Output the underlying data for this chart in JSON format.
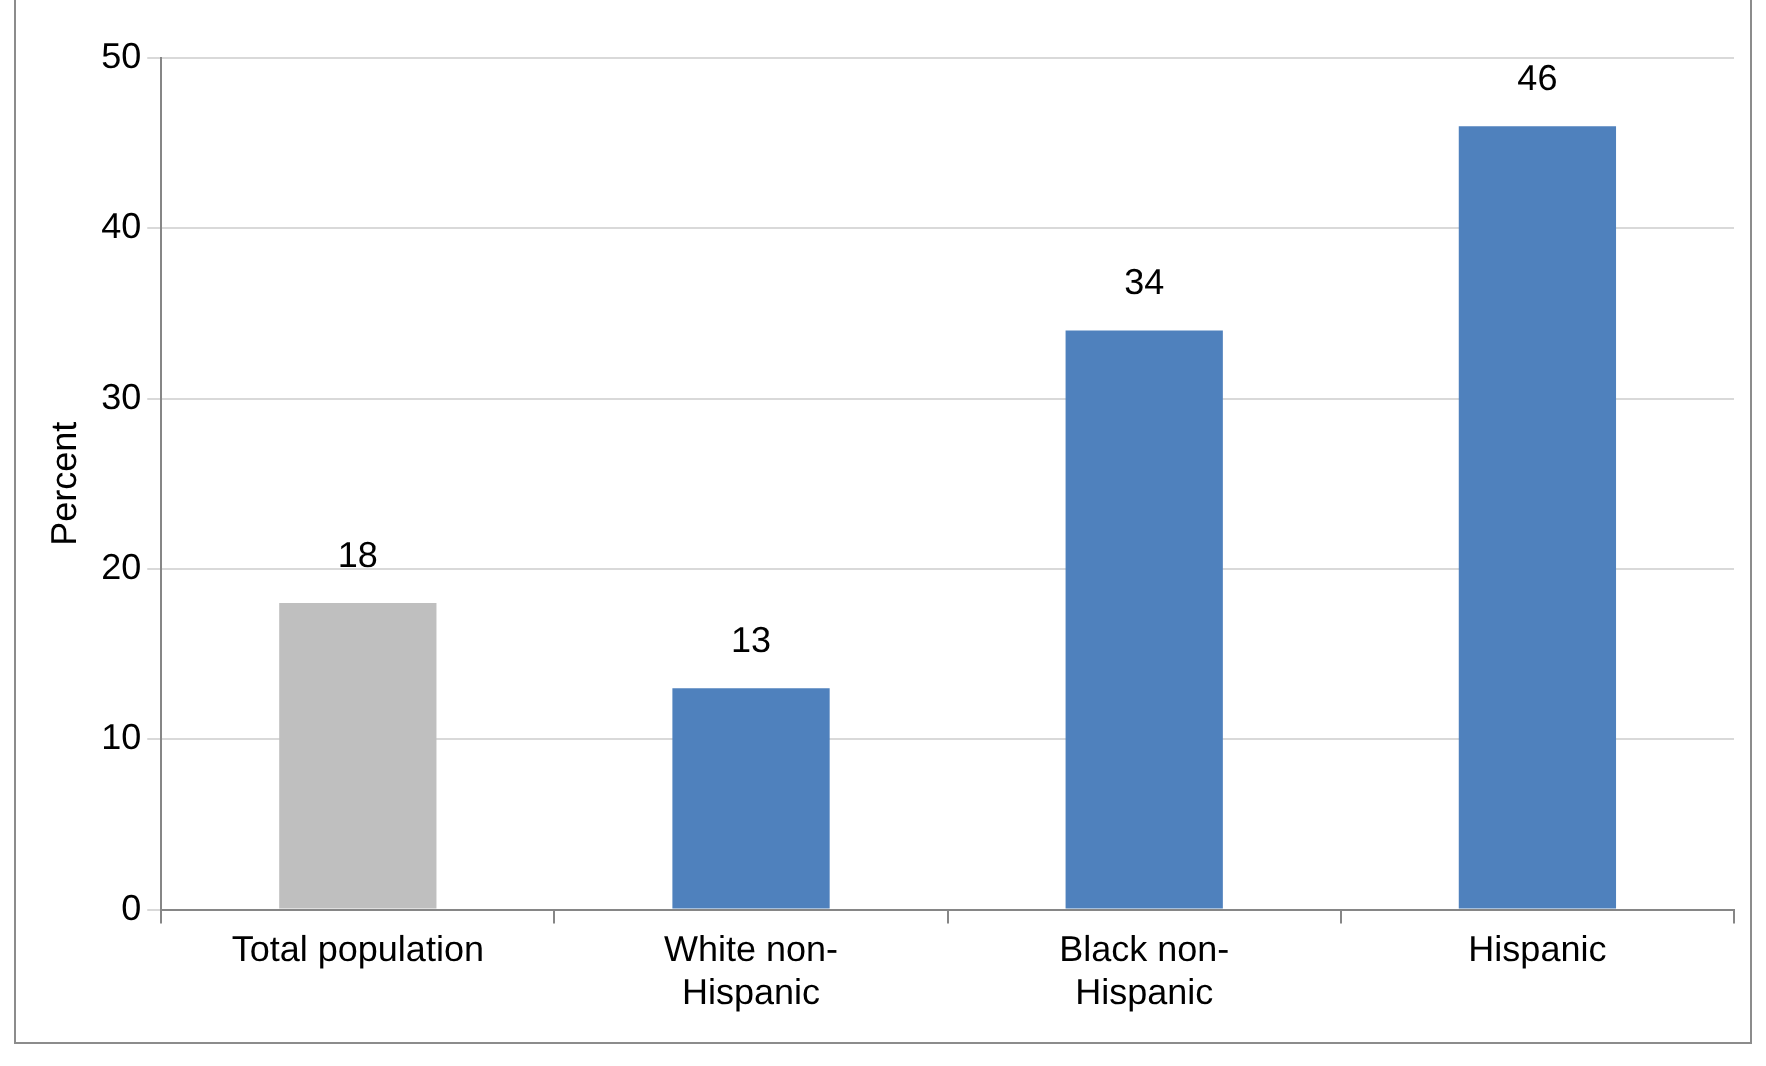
{
  "chart_data": {
    "type": "bar",
    "ylabel": "Percent",
    "categories": [
      "Total population",
      "White non-Hispanic",
      "Black non-Hispanic",
      "Hispanic"
    ],
    "values": [
      18,
      13,
      34,
      46
    ],
    "colors": [
      "#bfbfbf",
      "#4f81bd",
      "#4f81bd",
      "#4f81bd"
    ],
    "ylim": [
      0,
      50
    ],
    "yticks": [
      0,
      10,
      20,
      30,
      40,
      50
    ],
    "grid": "y",
    "data_labels": true,
    "legend": false
  }
}
